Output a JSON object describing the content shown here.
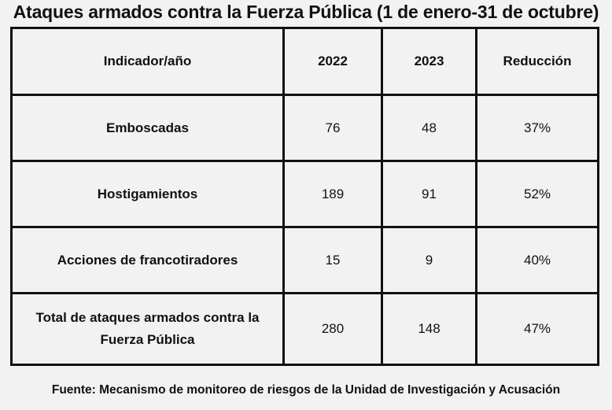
{
  "title": "Ataques armados contra la Fuerza Pública (1 de enero-31 de octubre)",
  "table": {
    "headers": [
      "Indicador/año",
      "2022",
      "2023",
      "Reducción"
    ],
    "rows": [
      {
        "label": "Emboscadas",
        "y2022": "76",
        "y2023": "48",
        "reduction": "37%"
      },
      {
        "label": "Hostigamientos",
        "y2022": "189",
        "y2023": "91",
        "reduction": "52%"
      },
      {
        "label": "Acciones de francotiradores",
        "y2022": "15",
        "y2023": "9",
        "reduction": "40%"
      },
      {
        "label": "Total de ataques armados contra la Fuerza Pública",
        "y2022": "280",
        "y2023": "148",
        "reduction": "47%"
      }
    ]
  },
  "source": "Fuente: Mecanismo de monitoreo de riesgos de la Unidad de Investigación y Acusación"
}
